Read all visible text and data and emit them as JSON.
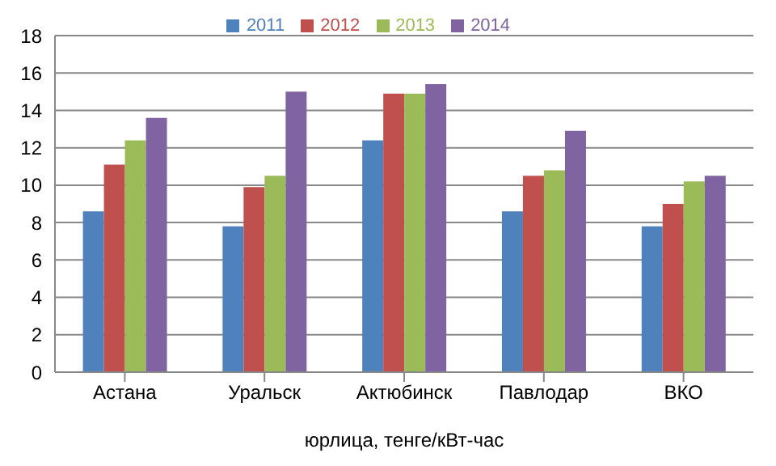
{
  "chart_data": {
    "type": "bar",
    "categories": [
      "Астана",
      "Уральск",
      "Актюбинск",
      "Павлодар",
      "ВКО"
    ],
    "xlabel": "юрлица, тенге/кВт-час",
    "series": [
      {
        "name": "2011",
        "color": "#4f81bd",
        "values": [
          8.6,
          7.8,
          12.4,
          8.6,
          7.8
        ]
      },
      {
        "name": "2012",
        "color": "#c0504d",
        "values": [
          11.1,
          9.9,
          14.9,
          10.5,
          9.0
        ]
      },
      {
        "name": "2013",
        "color": "#9bbb59",
        "values": [
          12.4,
          10.5,
          14.9,
          10.8,
          10.2
        ]
      },
      {
        "name": "2014",
        "color": "#8064a2",
        "values": [
          13.6,
          15.0,
          15.4,
          12.9,
          10.5
        ]
      }
    ],
    "ylim": [
      0,
      18
    ],
    "yticks": [
      0,
      2,
      4,
      6,
      8,
      10,
      12,
      14,
      16,
      18
    ],
    "grid": "y",
    "legend": "top"
  }
}
